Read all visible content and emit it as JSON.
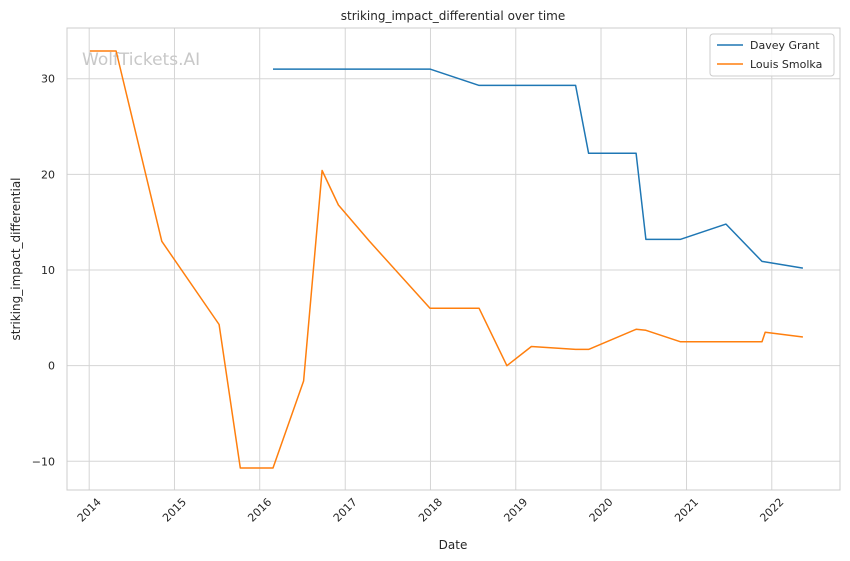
{
  "watermark": "WolfTickets.AI",
  "chart_data": {
    "type": "line",
    "title": "striking_impact_differential over time",
    "xlabel": "Date",
    "ylabel": "striking_impact_differential",
    "x_ticks": [
      "2014",
      "2015",
      "2016",
      "2017",
      "2018",
      "2019",
      "2020",
      "2021",
      "2022"
    ],
    "y_ticks": [
      -10,
      0,
      10,
      20,
      30
    ],
    "xlim": [
      "2013-09-28",
      "2022-10-20"
    ],
    "ylim": [
      -13,
      35.3
    ],
    "grid": true,
    "legend_position": "top-right",
    "series": [
      {
        "name": "Davey Grant",
        "color": "#1f77b4",
        "points": [
          [
            "2016-02-27",
            31.0
          ],
          [
            "2017-12-30",
            31.0
          ],
          [
            "2018-07-28",
            29.3
          ],
          [
            "2019-09-14",
            29.3
          ],
          [
            "2019-11-09",
            22.2
          ],
          [
            "2020-05-30",
            22.2
          ],
          [
            "2020-07-11",
            13.2
          ],
          [
            "2020-12-05",
            13.2
          ],
          [
            "2021-06-19",
            14.8
          ],
          [
            "2021-11-20",
            10.9
          ],
          [
            "2022-05-14",
            10.2
          ]
        ]
      },
      {
        "name": "Louis Smolka",
        "color": "#ff7f0e",
        "points": [
          [
            "2014-01-04",
            32.9
          ],
          [
            "2014-04-26",
            32.9
          ],
          [
            "2014-11-08",
            13.0
          ],
          [
            "2015-07-11",
            4.3
          ],
          [
            "2015-10-10",
            -10.7
          ],
          [
            "2016-02-27",
            -10.7
          ],
          [
            "2016-07-07",
            -1.6
          ],
          [
            "2016-09-24",
            20.4
          ],
          [
            "2016-12-03",
            16.8
          ],
          [
            "2017-04-15",
            13.0
          ],
          [
            "2017-12-30",
            6.0
          ],
          [
            "2018-07-28",
            6.0
          ],
          [
            "2018-11-24",
            0.0
          ],
          [
            "2019-03-09",
            2.0
          ],
          [
            "2019-09-14",
            1.7
          ],
          [
            "2019-11-09",
            1.7
          ],
          [
            "2020-05-30",
            3.8
          ],
          [
            "2020-07-11",
            3.7
          ],
          [
            "2020-12-05",
            2.5
          ],
          [
            "2021-06-19",
            2.5
          ],
          [
            "2021-11-20",
            2.5
          ],
          [
            "2021-12-04",
            3.5
          ],
          [
            "2022-05-14",
            3.0
          ]
        ]
      }
    ]
  }
}
